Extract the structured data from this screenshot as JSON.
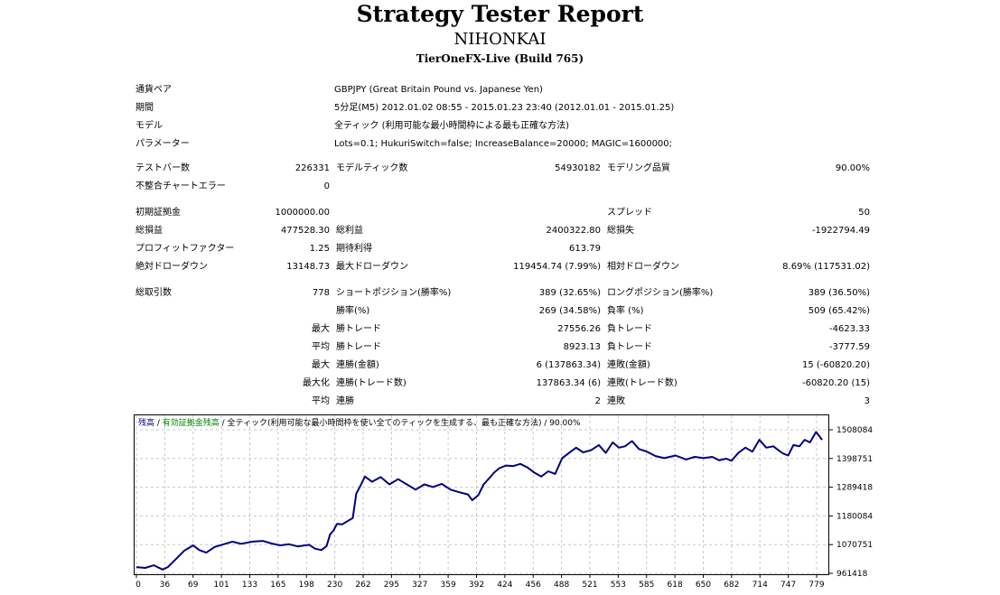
{
  "header": {
    "title": "Strategy Tester Report",
    "expert": "NIHONKAI",
    "server": "TierOneFX-Live (Build 765)"
  },
  "info": {
    "symbol_label": "通貨ペア",
    "symbol_value": "GBPJPY (Great Britain Pound vs. Japanese Yen)",
    "period_label": "期間",
    "period_value": "5分足(M5) 2012.01.02 08:55 - 2015.01.23 23:40 (2012.01.01 - 2015.01.25)",
    "model_label": "モデル",
    "model_value": "全ティック (利用可能な最小時間枠による最も正確な方法)",
    "params_label": "パラメーター",
    "params_value": "Lots=0.1; HukuriSwitch=false; IncreaseBalance=20000; MAGIC=1600000;"
  },
  "stats": {
    "bars_label": "テストバー数",
    "bars_value": "226331",
    "ticks_label": "モデルティック数",
    "ticks_value": "54930182",
    "quality_label": "モデリング品質",
    "quality_value": "90.00%",
    "mismatch_label": "不整合チャートエラー",
    "mismatch_value": "0",
    "deposit_label": "初期証拠金",
    "deposit_value": "1000000.00",
    "spread_label": "スプレッド",
    "spread_value": "50",
    "net_label": "総損益",
    "net_value": "477528.30",
    "gross_profit_label": "総利益",
    "gross_profit_value": "2400322.80",
    "gross_loss_label": "総損失",
    "gross_loss_value": "-1922794.49",
    "pf_label": "プロフィットファクター",
    "pf_value": "1.25",
    "expected_label": "期待利得",
    "expected_value": "613.79",
    "abs_dd_label": "絶対ドローダウン",
    "abs_dd_value": "13148.73",
    "max_dd_label": "最大ドローダウン",
    "max_dd_value": "119454.74 (7.99%)",
    "rel_dd_label": "相対ドローダウン",
    "rel_dd_value": "8.69% (117531.02)",
    "trades_label": "総取引数",
    "trades_value": "778",
    "short_label": "ショートポジション(勝率%)",
    "short_value": "389 (32.65%)",
    "long_label": "ロングポジション(勝率%)",
    "long_value": "389 (36.50%)",
    "winrate_label": "勝率(%)",
    "winrate_value": "269 (34.58%)",
    "lossrate_label": "負率 (%)",
    "lossrate_value": "509 (65.42%)",
    "max_prefix": "最大",
    "largest_win_label": "勝トレード",
    "largest_win_value": "27556.26",
    "largest_loss_label": "負トレード",
    "largest_loss_value": "-4623.33",
    "avg_prefix": "平均",
    "avg_win_label": "勝トレード",
    "avg_win_value": "8923.13",
    "avg_loss_label": "負トレード",
    "avg_loss_value": "-3777.59",
    "max_prefix2": "最大",
    "cons_wins_label": "連勝(金額)",
    "cons_wins_value": "6 (137863.34)",
    "cons_losses_label": "連敗(金額)",
    "cons_losses_value": "15 (-60820.20)",
    "maxed_prefix": "最大化",
    "cons_profit_label": "連勝(トレード数)",
    "cons_profit_value": "137863.34 (6)",
    "cons_loss_label": "連敗(トレード数)",
    "cons_loss_value": "-60820.20 (15)",
    "avg_prefix2": "平均",
    "avg_cons_wins_label": "連勝",
    "avg_cons_wins_value": "2",
    "avg_cons_losses_label": "連敗",
    "avg_cons_losses_value": "3"
  },
  "chart_data": {
    "type": "line",
    "legend_balance": "残高",
    "legend_sep1": " / ",
    "legend_equity": "有効証拠金残高",
    "legend_rest": " / 全ティック(利用可能な最小時間枠を使い全てのティックを生成する、最も正確な方法) / 90.00%",
    "x_ticks": [
      "0",
      "36",
      "69",
      "101",
      "133",
      "165",
      "198",
      "230",
      "262",
      "295",
      "327",
      "359",
      "392",
      "424",
      "456",
      "488",
      "521",
      "553",
      "585",
      "618",
      "650",
      "682",
      "714",
      "747",
      "779"
    ],
    "y_ticks": [
      "1508084",
      "1398751",
      "1289418",
      "1180084",
      "1070751",
      "961418"
    ],
    "ylim": [
      961418,
      1508084
    ],
    "xlim": [
      0,
      790
    ],
    "series": [
      {
        "color": "#00007f",
        "x": [
          0,
          10,
          20,
          30,
          36,
          45,
          55,
          65,
          72,
          80,
          90,
          100,
          110,
          120,
          133,
          145,
          155,
          165,
          175,
          185,
          198,
          205,
          212,
          218,
          222,
          226,
          230,
          236,
          242,
          248,
          252,
          256,
          262,
          270,
          280,
          290,
          300,
          310,
          320,
          330,
          340,
          350,
          360,
          370,
          380,
          385,
          392,
          398,
          404,
          410,
          416,
          424,
          432,
          440,
          448,
          456,
          464,
          472,
          480,
          488,
          496,
          504,
          512,
          521,
          530,
          538,
          546,
          553,
          560,
          568,
          576,
          585,
          595,
          605,
          618,
          630,
          640,
          650,
          660,
          668,
          676,
          682,
          690,
          698,
          706,
          714,
          722,
          730,
          736,
          741,
          747,
          753,
          760,
          766,
          772,
          779,
          786
        ],
        "y": [
          985000,
          982000,
          992000,
          976000,
          985000,
          1015000,
          1048000,
          1068000,
          1050000,
          1040000,
          1062000,
          1072000,
          1082000,
          1074000,
          1082000,
          1085000,
          1075000,
          1068000,
          1072000,
          1064000,
          1070000,
          1055000,
          1050000,
          1065000,
          1110000,
          1125000,
          1150000,
          1148000,
          1160000,
          1172000,
          1265000,
          1290000,
          1330000,
          1310000,
          1328000,
          1300000,
          1320000,
          1300000,
          1280000,
          1300000,
          1290000,
          1302000,
          1280000,
          1270000,
          1262000,
          1240000,
          1260000,
          1300000,
          1322000,
          1345000,
          1362000,
          1372000,
          1370000,
          1378000,
          1365000,
          1345000,
          1330000,
          1350000,
          1340000,
          1400000,
          1420000,
          1440000,
          1422000,
          1430000,
          1450000,
          1420000,
          1460000,
          1440000,
          1445000,
          1465000,
          1435000,
          1425000,
          1408000,
          1400000,
          1410000,
          1395000,
          1405000,
          1400000,
          1405000,
          1392000,
          1398000,
          1390000,
          1420000,
          1440000,
          1425000,
          1470000,
          1440000,
          1445000,
          1430000,
          1418000,
          1410000,
          1450000,
          1445000,
          1470000,
          1460000,
          1500000,
          1470000
        ]
      }
    ]
  }
}
